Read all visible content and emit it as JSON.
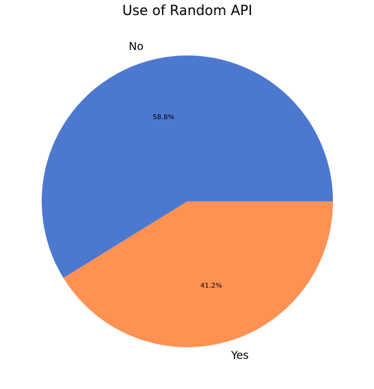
{
  "chart_data": {
    "type": "pie",
    "title": "Use of Random API",
    "categories": [
      "No",
      "Yes"
    ],
    "values": [
      58.8,
      41.2
    ],
    "value_labels": [
      "58.8%",
      "41.2%"
    ],
    "colors": [
      "#4c78cf",
      "#ff9152"
    ],
    "start_angle_deg": 0,
    "direction": "counterclockwise",
    "legend": "none"
  }
}
